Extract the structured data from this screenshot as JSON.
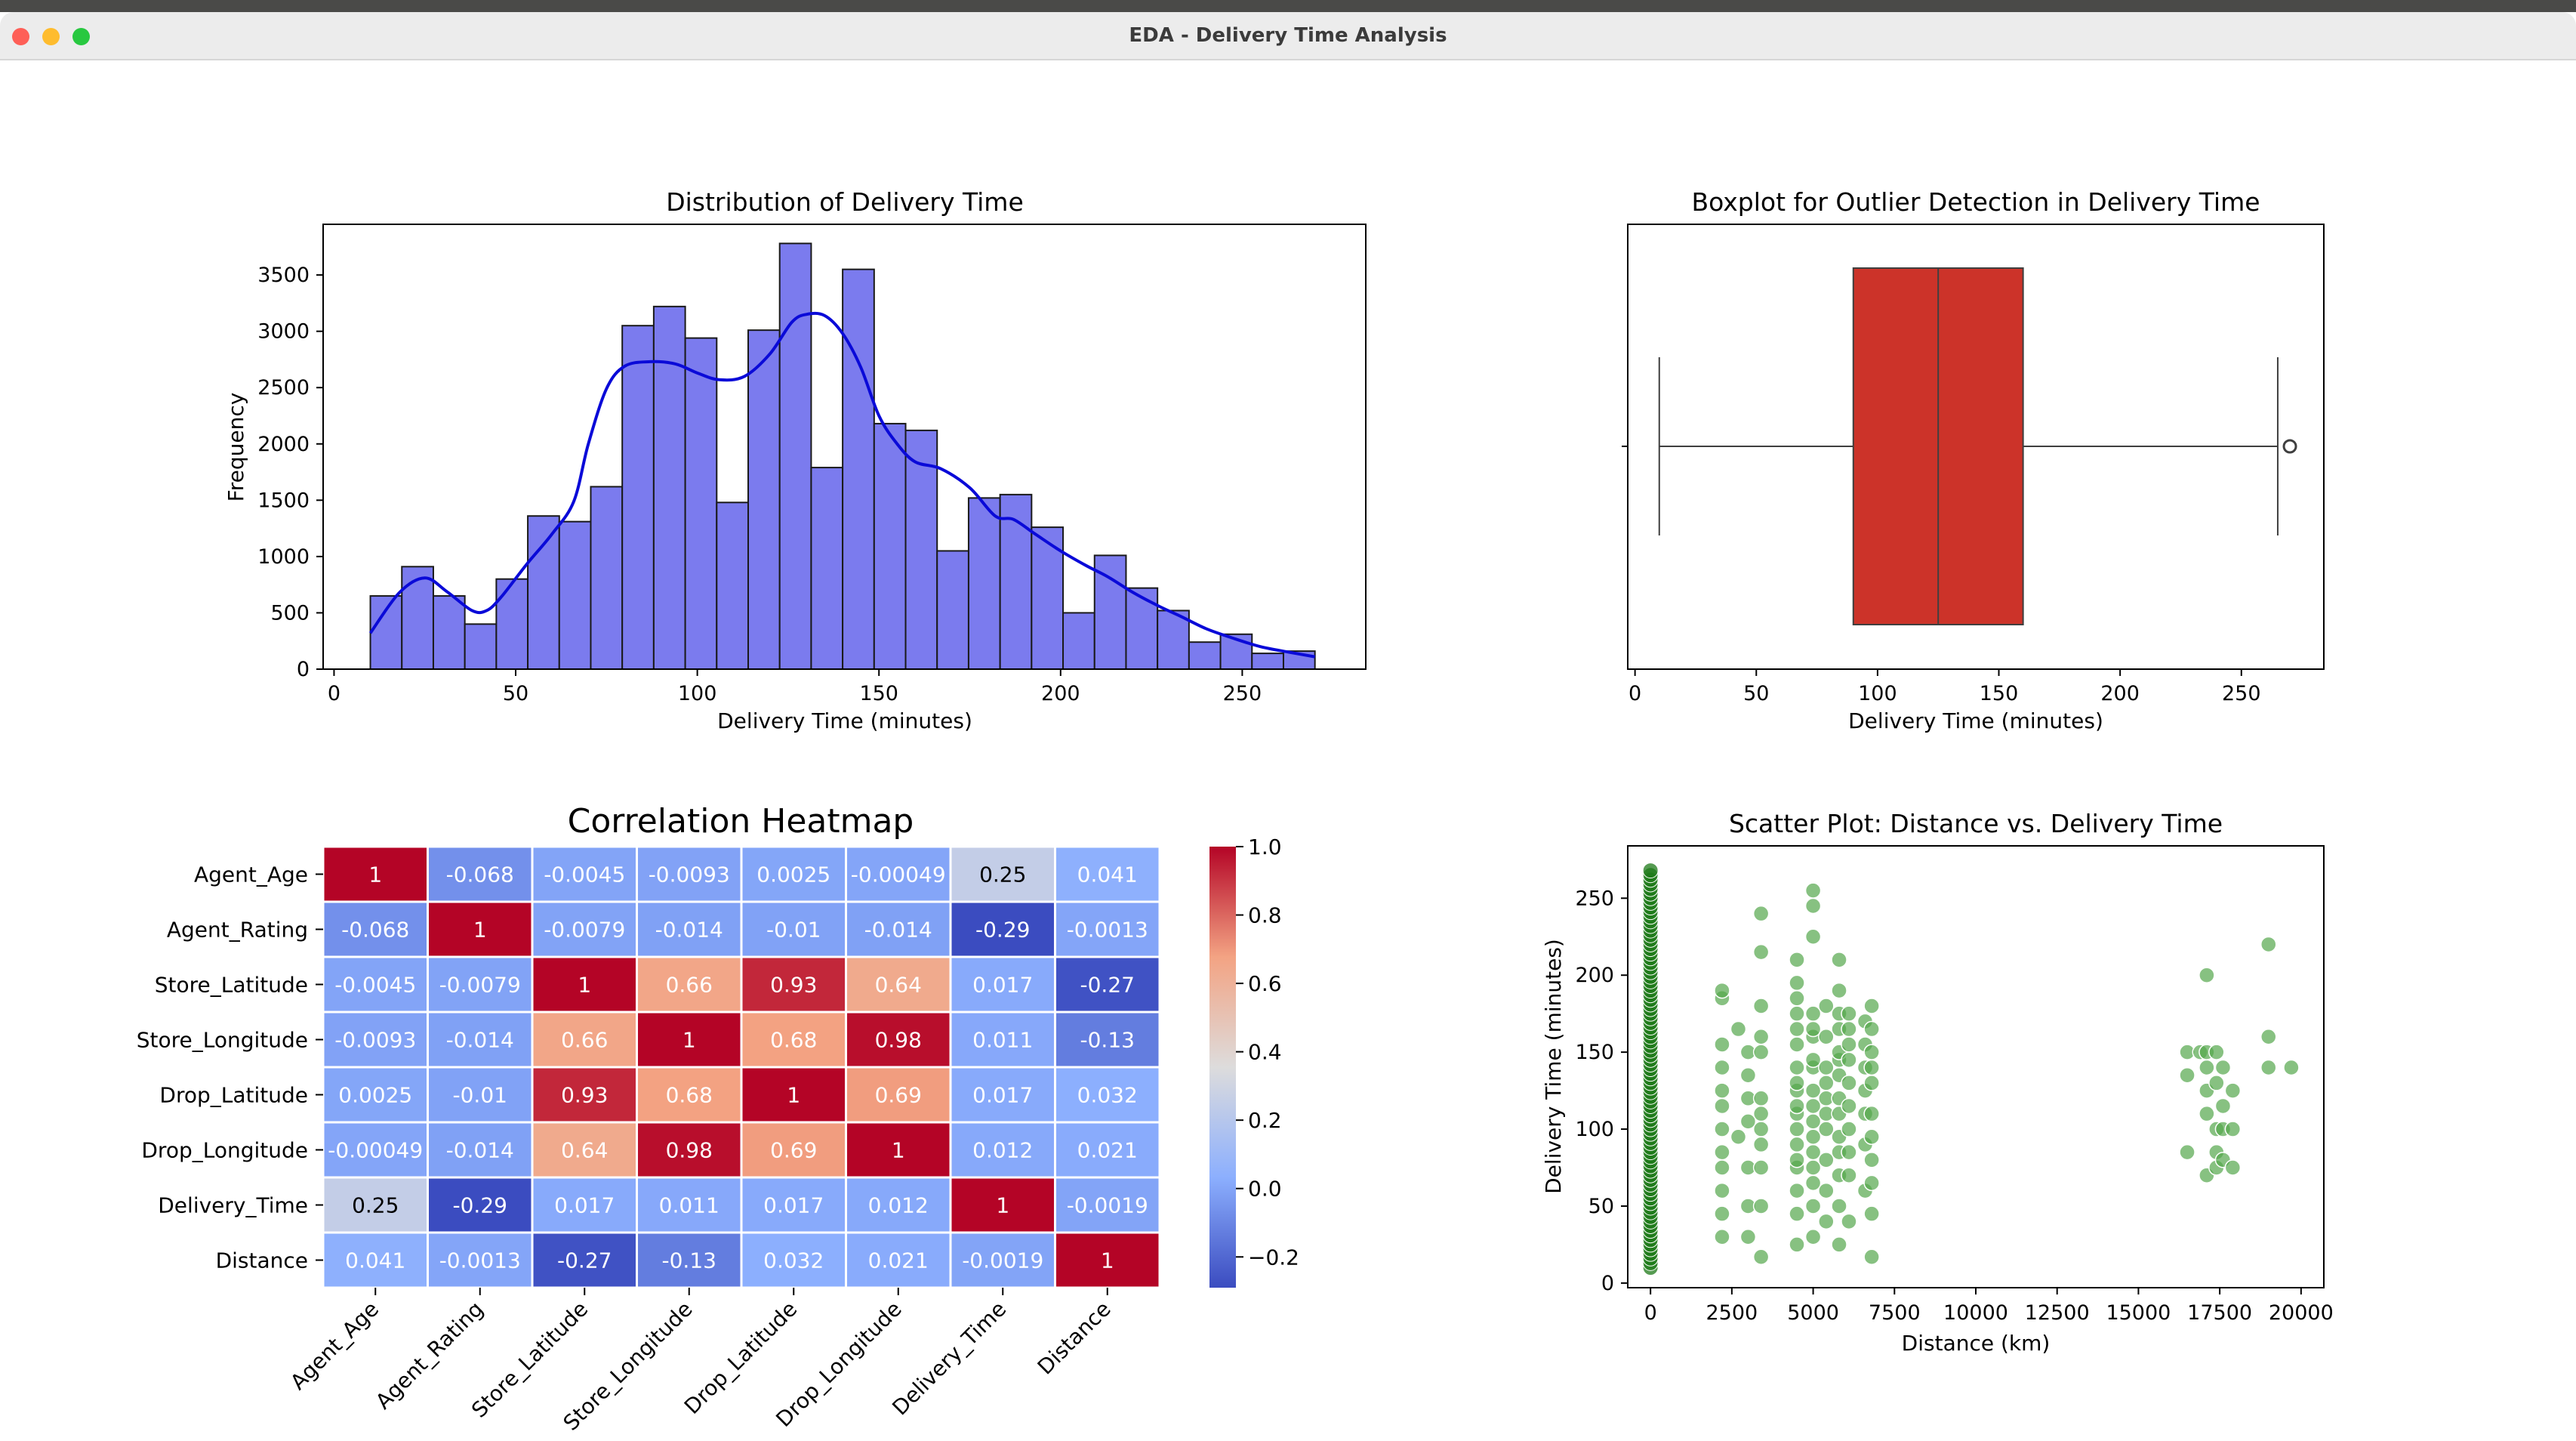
{
  "window": {
    "title": "EDA - Delivery Time Analysis"
  },
  "chart_data": [
    {
      "type": "bar",
      "title": "Distribution of Delivery Time",
      "xlabel": "Delivery Time (minutes)",
      "ylabel": "Frequency",
      "xlim": [
        -3,
        284
      ],
      "ylim": [
        0,
        3950
      ],
      "xticks": [
        0,
        50,
        100,
        150,
        200,
        250
      ],
      "yticks": [
        0,
        500,
        1000,
        1500,
        2000,
        2500,
        3000,
        3500
      ],
      "bin_start": 10,
      "bin_width": 8.667,
      "values": [
        650,
        910,
        650,
        400,
        800,
        1360,
        1310,
        1620,
        3050,
        3220,
        2940,
        1480,
        3010,
        3780,
        1790,
        3550,
        2180,
        2120,
        1050,
        1520,
        1550,
        1260,
        500,
        1010,
        720,
        520,
        240,
        310,
        140,
        160
      ],
      "kde": {
        "x": [
          10,
          18,
          25,
          31,
          38,
          42,
          46,
          53,
          60,
          66,
          70,
          75,
          80,
          87,
          94,
          100,
          106,
          113,
          120,
          126,
          130,
          135,
          140,
          145,
          150,
          155,
          160,
          167,
          175,
          182,
          187,
          193,
          200,
          207,
          213,
          220,
          227,
          233,
          240,
          247,
          255,
          263,
          270
        ],
        "y": [
          320,
          680,
          810,
          690,
          520,
          520,
          640,
          930,
          1200,
          1490,
          2000,
          2490,
          2690,
          2730,
          2710,
          2630,
          2570,
          2600,
          2800,
          3080,
          3150,
          3140,
          2980,
          2680,
          2250,
          2000,
          1840,
          1780,
          1610,
          1360,
          1330,
          1200,
          1050,
          920,
          820,
          680,
          560,
          470,
          360,
          280,
          200,
          150,
          110
        ]
      },
      "colors": {
        "bar": "#7b7bee",
        "edge": "#1a1a1a",
        "kde": "#0a0ad8"
      }
    },
    {
      "type": "box",
      "title": "Boxplot for Outlier Detection in Delivery Time",
      "xlabel": "Delivery Time (minutes)",
      "xlim": [
        -3,
        284
      ],
      "xticks": [
        0,
        50,
        100,
        150,
        200,
        250
      ],
      "whisker_low": 10,
      "q1": 90,
      "median": 125,
      "q3": 160,
      "whisker_high": 265,
      "outliers": [
        270
      ],
      "colors": {
        "box": "#cc3329"
      }
    },
    {
      "type": "heatmap",
      "title": "Correlation Heatmap",
      "labels": [
        "Agent_Age",
        "Agent_Rating",
        "Store_Latitude",
        "Store_Longitude",
        "Drop_Latitude",
        "Drop_Longitude",
        "Delivery_Time",
        "Distance"
      ],
      "cells": [
        [
          "1",
          "-0.068",
          "-0.0045",
          "-0.0093",
          "0.0025",
          "-0.00049",
          "0.25",
          "0.041"
        ],
        [
          "-0.068",
          "1",
          "-0.0079",
          "-0.014",
          "-0.01",
          "-0.014",
          "-0.29",
          "-0.0013"
        ],
        [
          "-0.0045",
          "-0.0079",
          "1",
          "0.66",
          "0.93",
          "0.64",
          "0.017",
          "-0.27"
        ],
        [
          "-0.0093",
          "-0.014",
          "0.66",
          "1",
          "0.68",
          "0.98",
          "0.011",
          "-0.13"
        ],
        [
          "0.0025",
          "-0.01",
          "0.93",
          "0.68",
          "1",
          "0.69",
          "0.017",
          "0.032"
        ],
        [
          "-0.00049",
          "-0.014",
          "0.64",
          "0.98",
          "0.69",
          "1",
          "0.012",
          "0.021"
        ],
        [
          "0.25",
          "-0.29",
          "0.017",
          "0.011",
          "0.017",
          "0.012",
          "1",
          "-0.0019"
        ],
        [
          "0.041",
          "-0.0013",
          "-0.27",
          "-0.13",
          "0.032",
          "0.021",
          "-0.0019",
          "1"
        ]
      ],
      "colorbar": {
        "min": -0.29,
        "max": 1.0,
        "ticks": [
          "1.0",
          "0.8",
          "0.6",
          "0.4",
          "0.2",
          "0.0",
          "−0.2"
        ]
      },
      "colormap": "coolwarm"
    },
    {
      "type": "scatter",
      "title": "Scatter Plot: Distance vs. Delivery Time",
      "xlabel": "Distance (km)",
      "ylabel": "Delivery Time (minutes)",
      "xlim": [
        -700,
        20700
      ],
      "ylim": [
        -3,
        284
      ],
      "xticks": [
        0,
        2500,
        5000,
        7500,
        10000,
        12500,
        15000,
        17500,
        20000
      ],
      "yticks": [
        0,
        50,
        100,
        150,
        200,
        250
      ],
      "columns": [
        {
          "x": 0,
          "y_range": [
            10,
            270
          ],
          "step": 3
        },
        {
          "x": 2200,
          "y": [
            30,
            45,
            60,
            75,
            85,
            100,
            115,
            125,
            140,
            155,
            185,
            190
          ]
        },
        {
          "x": 2700,
          "y": [
            95,
            165
          ]
        },
        {
          "x": 3000,
          "y": [
            30,
            50,
            75,
            105,
            120,
            135,
            150
          ]
        },
        {
          "x": 3400,
          "y": [
            17,
            50,
            75,
            90,
            100,
            110,
            120,
            150,
            160,
            180,
            215,
            240
          ]
        },
        {
          "x": 4500,
          "y": [
            25,
            45,
            60,
            75,
            80,
            90,
            100,
            110,
            115,
            125,
            130,
            140,
            155,
            165,
            175,
            185,
            195,
            210
          ]
        },
        {
          "x": 5000,
          "y": [
            30,
            50,
            65,
            75,
            85,
            95,
            105,
            115,
            125,
            140,
            145,
            160,
            165,
            175,
            225,
            245,
            255
          ]
        },
        {
          "x": 5400,
          "y": [
            40,
            60,
            80,
            100,
            110,
            120,
            130,
            140,
            160,
            180
          ]
        },
        {
          "x": 5800,
          "y": [
            25,
            50,
            70,
            85,
            95,
            110,
            120,
            135,
            145,
            150,
            165,
            175,
            190,
            210
          ]
        },
        {
          "x": 6100,
          "y": [
            40,
            70,
            85,
            100,
            115,
            130,
            145,
            155,
            165,
            175
          ]
        },
        {
          "x": 6600,
          "y": [
            60,
            90,
            110,
            125,
            140,
            155,
            170
          ]
        },
        {
          "x": 6800,
          "y": [
            17,
            45,
            65,
            80,
            95,
            110,
            130,
            140,
            150,
            165,
            180
          ]
        },
        {
          "x": 16500,
          "y": [
            85,
            135,
            150
          ]
        },
        {
          "x": 16900,
          "y": [
            150
          ]
        },
        {
          "x": 17100,
          "y": [
            70,
            110,
            125,
            140,
            150,
            200
          ]
        },
        {
          "x": 17400,
          "y": [
            75,
            85,
            100,
            130,
            150
          ]
        },
        {
          "x": 17600,
          "y": [
            80,
            100,
            115,
            140
          ]
        },
        {
          "x": 17900,
          "y": [
            75,
            100,
            125
          ]
        },
        {
          "x": 19000,
          "y": [
            140,
            160,
            220
          ]
        },
        {
          "x": 19700,
          "y": [
            140
          ]
        }
      ],
      "colors": {
        "point": "#54a64c",
        "point_dense": "#1e7a18"
      }
    }
  ]
}
